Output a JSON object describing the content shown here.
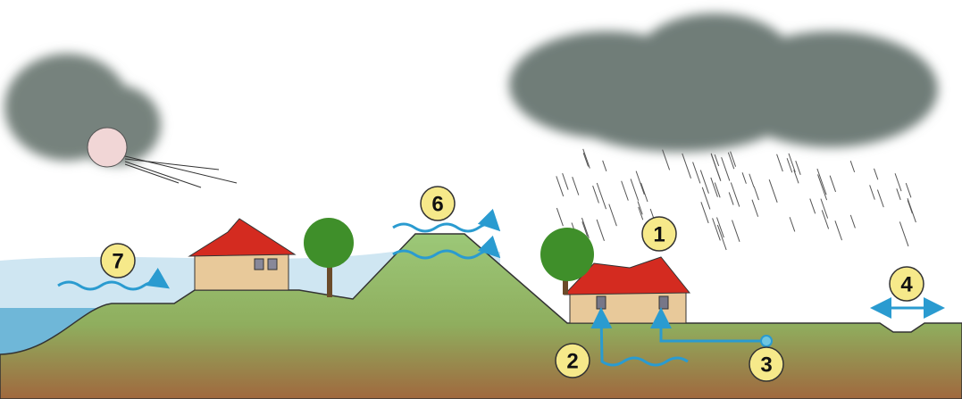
{
  "markers": [
    "1",
    "2",
    "3",
    "4",
    "6",
    "7"
  ]
}
